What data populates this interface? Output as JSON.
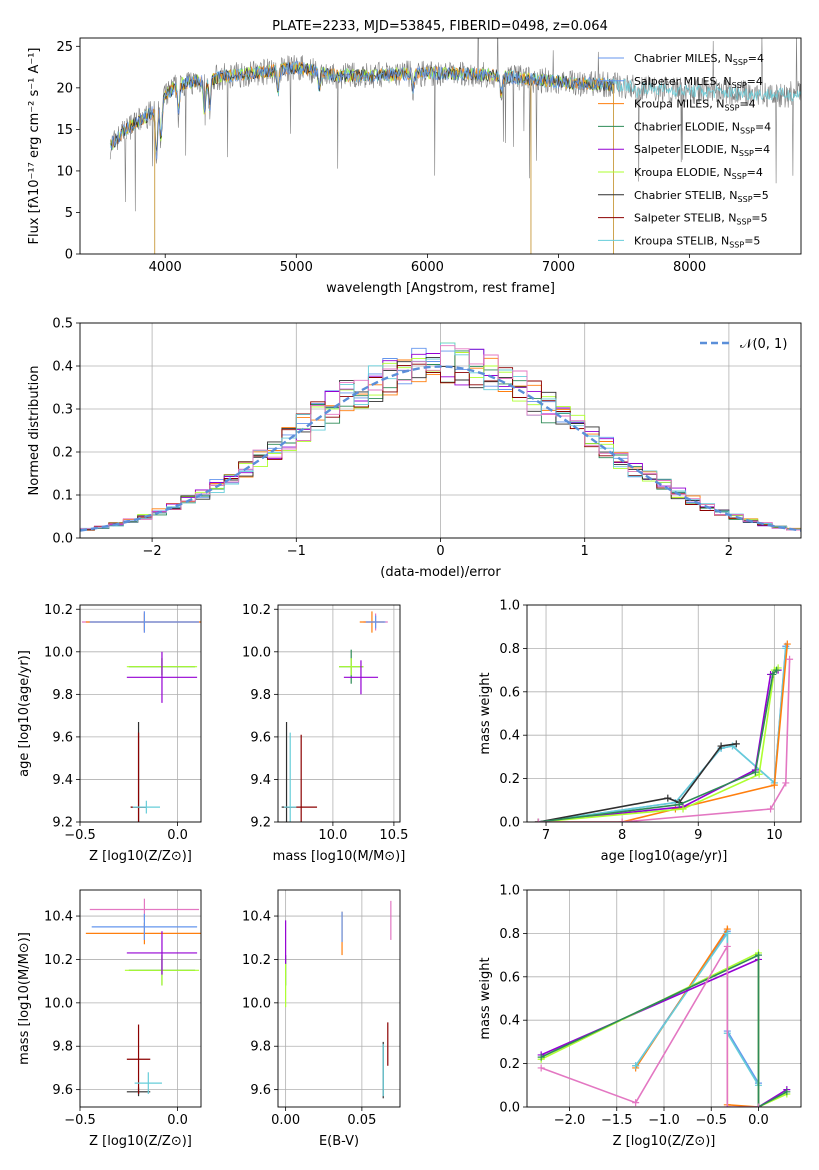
{
  "figure_title": "PLATE=2233, MJD=53845, FIBERID=0498, z=0.064",
  "colors": {
    "chabrier_miles": "#6495ed",
    "salpeter_miles": "#6495ed",
    "kroupa_miles": "#ff7f0e",
    "chabrier_elodie": "#2e8b57",
    "salpeter_elodie": "#9400d3",
    "kroupa_elodie": "#adff2f",
    "chabrier_stelib": "#2f2f2f",
    "salpeter_stelib": "#8b0000",
    "kroupa_stelib": "#66cdd9",
    "pink": "#e377c2",
    "normal_curve": "#5b8fd9",
    "grid": "#b0b0b0"
  },
  "legend": [
    {
      "text": "Chabrier MILES, N",
      "sub": "SSP",
      "suffix": "=4",
      "color": "#6495ed"
    },
    {
      "text": "Salpeter MILES, N",
      "sub": "SSP",
      "suffix": "=4",
      "color": "#6495ed"
    },
    {
      "text": "Kroupa MILES, N",
      "sub": "SSP",
      "suffix": "=4",
      "color": "#ff7f0e"
    },
    {
      "text": "Chabrier ELODIE, N",
      "sub": "SSP",
      "suffix": "=4",
      "color": "#2e8b57"
    },
    {
      "text": "Salpeter ELODIE, N",
      "sub": "SSP",
      "suffix": "=4",
      "color": "#9400d3"
    },
    {
      "text": "Kroupa ELODIE, N",
      "sub": "SSP",
      "suffix": "=4",
      "color": "#adff2f"
    },
    {
      "text": "Chabrier STELIB, N",
      "sub": "SSP",
      "suffix": "=5",
      "color": "#2f2f2f"
    },
    {
      "text": "Salpeter STELIB, N",
      "sub": "SSP",
      "suffix": "=5",
      "color": "#8b0000"
    },
    {
      "text": "Kroupa STELIB, N",
      "sub": "SSP",
      "suffix": "=5",
      "color": "#66cdd9"
    }
  ],
  "chart_data": [
    {
      "id": "spectrum",
      "type": "line",
      "xlabel": "wavelength [Angstrom, rest frame]",
      "ylabel": "Flux [fλ10⁻¹⁷ erg cm⁻² s⁻¹ A⁻¹]",
      "xlim": [
        3350,
        8850
      ],
      "ylim": [
        0,
        26
      ],
      "xticks": [
        4000,
        5000,
        6000,
        7000,
        8000
      ],
      "yticks": [
        0,
        5,
        10,
        15,
        20,
        25
      ],
      "grid": false,
      "legend_position": "top-right",
      "wave_knots": [
        3580,
        3700,
        3800,
        3900,
        4000,
        4100,
        4300,
        4500,
        4800,
        5000,
        5300,
        5600,
        6000,
        6500,
        7000,
        7200,
        7500,
        7800,
        8200,
        8600
      ],
      "flux_knots": [
        13,
        15,
        16,
        17,
        19,
        20.5,
        21,
        21.5,
        22,
        22.5,
        21.5,
        21.5,
        21.8,
        21.5,
        20.7,
        20.5,
        20.3,
        19.8,
        19.5,
        19.2
      ],
      "drops": [
        3920,
        6790,
        7420
      ]
    },
    {
      "id": "residuals",
      "type": "histogram",
      "xlabel": "(data-model)/error",
      "ylabel": "Normed distribution",
      "xlim": [
        -2.5,
        2.5
      ],
      "ylim": [
        0,
        0.5
      ],
      "xticks": [
        -2,
        -1,
        0,
        1,
        2
      ],
      "xtick_labels": [
        "−2",
        "−1",
        "0",
        "1",
        "2"
      ],
      "yticks": [
        0.0,
        0.1,
        0.2,
        0.3,
        0.4,
        0.5
      ],
      "grid": true,
      "bin_width": 0.1,
      "legend": "𝒩(0, 1)",
      "normal_mean": 0,
      "normal_sigma": 1
    },
    {
      "id": "age-vs-Z",
      "type": "errorbar",
      "xlabel": "Z [log10(Z/Z⊙)]",
      "ylabel": "age  [log10(age/yr)]",
      "xlim": [
        -0.5,
        0.12
      ],
      "ylim": [
        9.2,
        10.22
      ],
      "xticks": [
        -0.5,
        0.0
      ],
      "yticks": [
        9.2,
        9.4,
        9.6,
        9.8,
        10.0,
        10.2
      ],
      "grid": true,
      "points": [
        {
          "x": -0.17,
          "y": 10.14,
          "xerr": 0.32,
          "yerr": 0.05,
          "color": "#e377c2"
        },
        {
          "x": -0.17,
          "y": 10.14,
          "xerr": 0.3,
          "yerr": 0.04,
          "color": "#ff7f0e"
        },
        {
          "x": -0.17,
          "y": 10.14,
          "xerr": 0.28,
          "yerr": 0.05,
          "color": "#6495ed"
        },
        {
          "x": -0.08,
          "y": 9.93,
          "xerr": 0.17,
          "yerr": 0.04,
          "color": "#2e8b57"
        },
        {
          "x": -0.08,
          "y": 9.93,
          "xerr": 0.18,
          "yerr": 0.04,
          "color": "#adff2f"
        },
        {
          "x": -0.08,
          "y": 9.88,
          "xerr": 0.18,
          "yerr": 0.12,
          "color": "#9400d3"
        },
        {
          "x": -0.2,
          "y": 9.27,
          "xerr": 0.04,
          "yerr": 0.4,
          "color": "#2f2f2f"
        },
        {
          "x": -0.2,
          "y": 9.27,
          "xerr": 0.04,
          "yerr": 0.35,
          "color": "#8b0000"
        },
        {
          "x": -0.16,
          "y": 9.27,
          "xerr": 0.07,
          "yerr": 0.03,
          "color": "#66cdd9"
        }
      ]
    },
    {
      "id": "age-vs-mass",
      "type": "errorbar",
      "xlabel": "mass [log10(M/M⊙)]",
      "ylabel": "",
      "xlim": [
        9.55,
        10.55
      ],
      "ylim": [
        9.2,
        10.22
      ],
      "xticks": [
        10.0,
        10.5
      ],
      "yticks": [
        9.2,
        9.4,
        9.6,
        9.8,
        10.0,
        10.2
      ],
      "grid": true,
      "points": [
        {
          "x": 10.35,
          "y": 10.14,
          "xerr": 0.1,
          "yerr": 0.04,
          "color": "#e377c2"
        },
        {
          "x": 10.32,
          "y": 10.14,
          "xerr": 0.1,
          "yerr": 0.05,
          "color": "#ff7f0e"
        },
        {
          "x": 10.35,
          "y": 10.14,
          "xerr": 0.08,
          "yerr": 0.03,
          "color": "#6495ed"
        },
        {
          "x": 10.15,
          "y": 9.93,
          "xerr": 0.1,
          "yerr": 0.08,
          "color": "#2e8b57"
        },
        {
          "x": 10.15,
          "y": 9.93,
          "xerr": 0.1,
          "yerr": 0.04,
          "color": "#adff2f"
        },
        {
          "x": 10.23,
          "y": 9.88,
          "xerr": 0.14,
          "yerr": 0.08,
          "color": "#9400d3"
        },
        {
          "x": 9.62,
          "y": 9.27,
          "xerr": 0.04,
          "yerr": 0.4,
          "color": "#2f2f2f"
        },
        {
          "x": 9.74,
          "y": 9.27,
          "xerr": 0.13,
          "yerr": 0.34,
          "color": "#8b0000"
        },
        {
          "x": 9.65,
          "y": 9.27,
          "xerr": 0.05,
          "yerr": 0.35,
          "color": "#66cdd9"
        }
      ]
    },
    {
      "id": "mass-weight-vs-age",
      "type": "line",
      "xlabel": "age  [log10(age/yr)]",
      "ylabel": "mass weight",
      "xlim": [
        6.75,
        10.35
      ],
      "ylim": [
        0,
        1
      ],
      "xticks": [
        7,
        8,
        9,
        10
      ],
      "yticks": [
        0.0,
        0.2,
        0.4,
        0.6,
        0.8,
        1.0
      ],
      "grid": true,
      "series": [
        {
          "color": "#6495ed",
          "x": [
            6.9,
            8.7,
            9.3,
            9.45,
            10.0,
            10.15
          ],
          "y": [
            0.0,
            0.09,
            0.34,
            0.35,
            0.18,
            0.81
          ]
        },
        {
          "color": "#66cdd9",
          "x": [
            6.9,
            8.7,
            9.3,
            9.45,
            10.0,
            10.15
          ],
          "y": [
            0.0,
            0.09,
            0.34,
            0.35,
            0.18,
            0.8
          ]
        },
        {
          "color": "#2f2f2f",
          "x": [
            6.9,
            8.6,
            8.75,
            9.3,
            9.5
          ],
          "y": [
            0.0,
            0.11,
            0.09,
            0.35,
            0.36
          ]
        },
        {
          "color": "#ff7f0e",
          "x": [
            6.9,
            8.0,
            8.7,
            10.0,
            10.17
          ],
          "y": [
            0.0,
            0.0,
            0.06,
            0.17,
            0.82
          ]
        },
        {
          "color": "#9400d3",
          "x": [
            6.9,
            8.8,
            9.75,
            9.95,
            10.05
          ],
          "y": [
            0.0,
            0.07,
            0.24,
            0.68,
            0.7
          ]
        },
        {
          "color": "#adff2f",
          "x": [
            6.9,
            8.8,
            9.8,
            10.0,
            10.05
          ],
          "y": [
            0.0,
            0.06,
            0.22,
            0.7,
            0.71
          ]
        },
        {
          "color": "#2e8b57",
          "x": [
            6.9,
            8.75,
            9.75,
            9.98,
            10.03
          ],
          "y": [
            0.0,
            0.08,
            0.23,
            0.68,
            0.7
          ]
        },
        {
          "color": "#e377c2",
          "x": [
            6.9,
            8.0,
            9.95,
            10.15,
            10.2
          ],
          "y": [
            0.0,
            0.0,
            0.06,
            0.18,
            0.75
          ]
        }
      ]
    },
    {
      "id": "mass-vs-Z",
      "type": "errorbar",
      "xlabel": "Z [log10(Z/Z⊙)]",
      "ylabel": "mass [log10(M/M⊙)]",
      "xlim": [
        -0.5,
        0.12
      ],
      "ylim": [
        9.52,
        10.52
      ],
      "xticks": [
        -0.5,
        0.0
      ],
      "yticks": [
        9.6,
        9.8,
        10.0,
        10.2,
        10.4
      ],
      "grid": true,
      "points": [
        {
          "x": -0.17,
          "y": 10.43,
          "xerr": 0.28,
          "yerr": 0.05,
          "color": "#e377c2"
        },
        {
          "x": -0.17,
          "y": 10.32,
          "xerr": 0.3,
          "yerr": 0.05,
          "color": "#ff7f0e"
        },
        {
          "x": -0.17,
          "y": 10.35,
          "xerr": 0.27,
          "yerr": 0.06,
          "color": "#6495ed"
        },
        {
          "x": -0.08,
          "y": 10.15,
          "xerr": 0.17,
          "yerr": 0.07,
          "color": "#2e8b57"
        },
        {
          "x": -0.08,
          "y": 10.15,
          "xerr": 0.19,
          "yerr": 0.07,
          "color": "#adff2f"
        },
        {
          "x": -0.08,
          "y": 10.23,
          "xerr": 0.18,
          "yerr": 0.1,
          "color": "#9400d3"
        },
        {
          "x": -0.2,
          "y": 9.59,
          "xerr": 0.06,
          "yerr": 0.02,
          "color": "#2f2f2f"
        },
        {
          "x": -0.2,
          "y": 9.74,
          "xerr": 0.06,
          "yerr": 0.16,
          "color": "#8b0000"
        },
        {
          "x": -0.15,
          "y": 9.63,
          "xerr": 0.07,
          "yerr": 0.05,
          "color": "#66cdd9"
        }
      ]
    },
    {
      "id": "mass-vs-EBV",
      "type": "errorbar",
      "xlabel": "E(B-V)",
      "ylabel": "",
      "xlim": [
        -0.005,
        0.075
      ],
      "ylim": [
        9.52,
        10.52
      ],
      "xticks": [
        0.0,
        0.05
      ],
      "xtick_labels": [
        "0.00",
        "0.05"
      ],
      "yticks": [
        9.6,
        9.8,
        10.0,
        10.2,
        10.4
      ],
      "grid": true,
      "points": [
        {
          "x": 0.069,
          "y": 10.38,
          "xerr": 0.0,
          "yerr": 0.09,
          "color": "#e377c2"
        },
        {
          "x": 0.037,
          "y": 10.32,
          "xerr": 0.0,
          "yerr": 0.1,
          "color": "#ff7f0e"
        },
        {
          "x": 0.037,
          "y": 10.35,
          "xerr": 0.0,
          "yerr": 0.07,
          "color": "#6495ed"
        },
        {
          "x": 0.0,
          "y": 10.15,
          "xerr": 0.0,
          "yerr": 0.07,
          "color": "#2e8b57"
        },
        {
          "x": 0.0,
          "y": 10.08,
          "xerr": 0.0,
          "yerr": 0.1,
          "color": "#adff2f"
        },
        {
          "x": 0.0,
          "y": 10.28,
          "xerr": 0.0,
          "yerr": 0.1,
          "color": "#9400d3"
        },
        {
          "x": 0.064,
          "y": 9.69,
          "xerr": 0.0,
          "yerr": 0.13,
          "color": "#2f2f2f"
        },
        {
          "x": 0.067,
          "y": 9.81,
          "xerr": 0.0,
          "yerr": 0.1,
          "color": "#8b0000"
        },
        {
          "x": 0.064,
          "y": 9.69,
          "xerr": 0.0,
          "yerr": 0.12,
          "color": "#66cdd9"
        }
      ]
    },
    {
      "id": "mass-weight-vs-Z",
      "type": "line",
      "xlabel": "Z [log10(Z/Z⊙)]",
      "ylabel": "mass weight",
      "xlim": [
        -2.45,
        0.45
      ],
      "ylim": [
        0,
        1
      ],
      "xticks": [
        -2.0,
        -1.5,
        -1.0,
        -0.5,
        0.0
      ],
      "xtick_labels": [
        "−2.0",
        "−1.5",
        "−1.0",
        "−0.5",
        "0.0"
      ],
      "yticks": [
        0.0,
        0.2,
        0.4,
        0.6,
        0.8,
        1.0
      ],
      "grid": true,
      "series": [
        {
          "color": "#6495ed",
          "x": [
            -1.3,
            -0.33,
            -0.33,
            0.0,
            0.0
          ],
          "y": [
            0.19,
            0.81,
            0.35,
            0.11,
            0.0
          ]
        },
        {
          "color": "#ff7f0e",
          "x": [
            -1.3,
            -0.33,
            -0.33,
            0.0
          ],
          "y": [
            0.18,
            0.82,
            0.01,
            0.0
          ]
        },
        {
          "color": "#66cdd9",
          "x": [
            -1.3,
            -0.33,
            -0.33,
            0.0,
            0.0
          ],
          "y": [
            0.19,
            0.8,
            0.34,
            0.1,
            0.0
          ]
        },
        {
          "color": "#9400d3",
          "x": [
            -2.3,
            0.0,
            0.0,
            0.3
          ],
          "y": [
            0.24,
            0.68,
            0.0,
            0.08
          ]
        },
        {
          "color": "#adff2f",
          "x": [
            -2.3,
            0.0,
            0.0,
            0.3
          ],
          "y": [
            0.22,
            0.71,
            0.0,
            0.06
          ]
        },
        {
          "color": "#2e8b57",
          "x": [
            -2.3,
            0.0,
            0.0,
            0.3
          ],
          "y": [
            0.23,
            0.7,
            0.0,
            0.07
          ]
        },
        {
          "color": "#e377c2",
          "x": [
            -2.3,
            -1.3,
            -0.33,
            -0.33,
            0.0
          ],
          "y": [
            0.18,
            0.02,
            0.74,
            0.0,
            0.0
          ]
        }
      ]
    }
  ]
}
